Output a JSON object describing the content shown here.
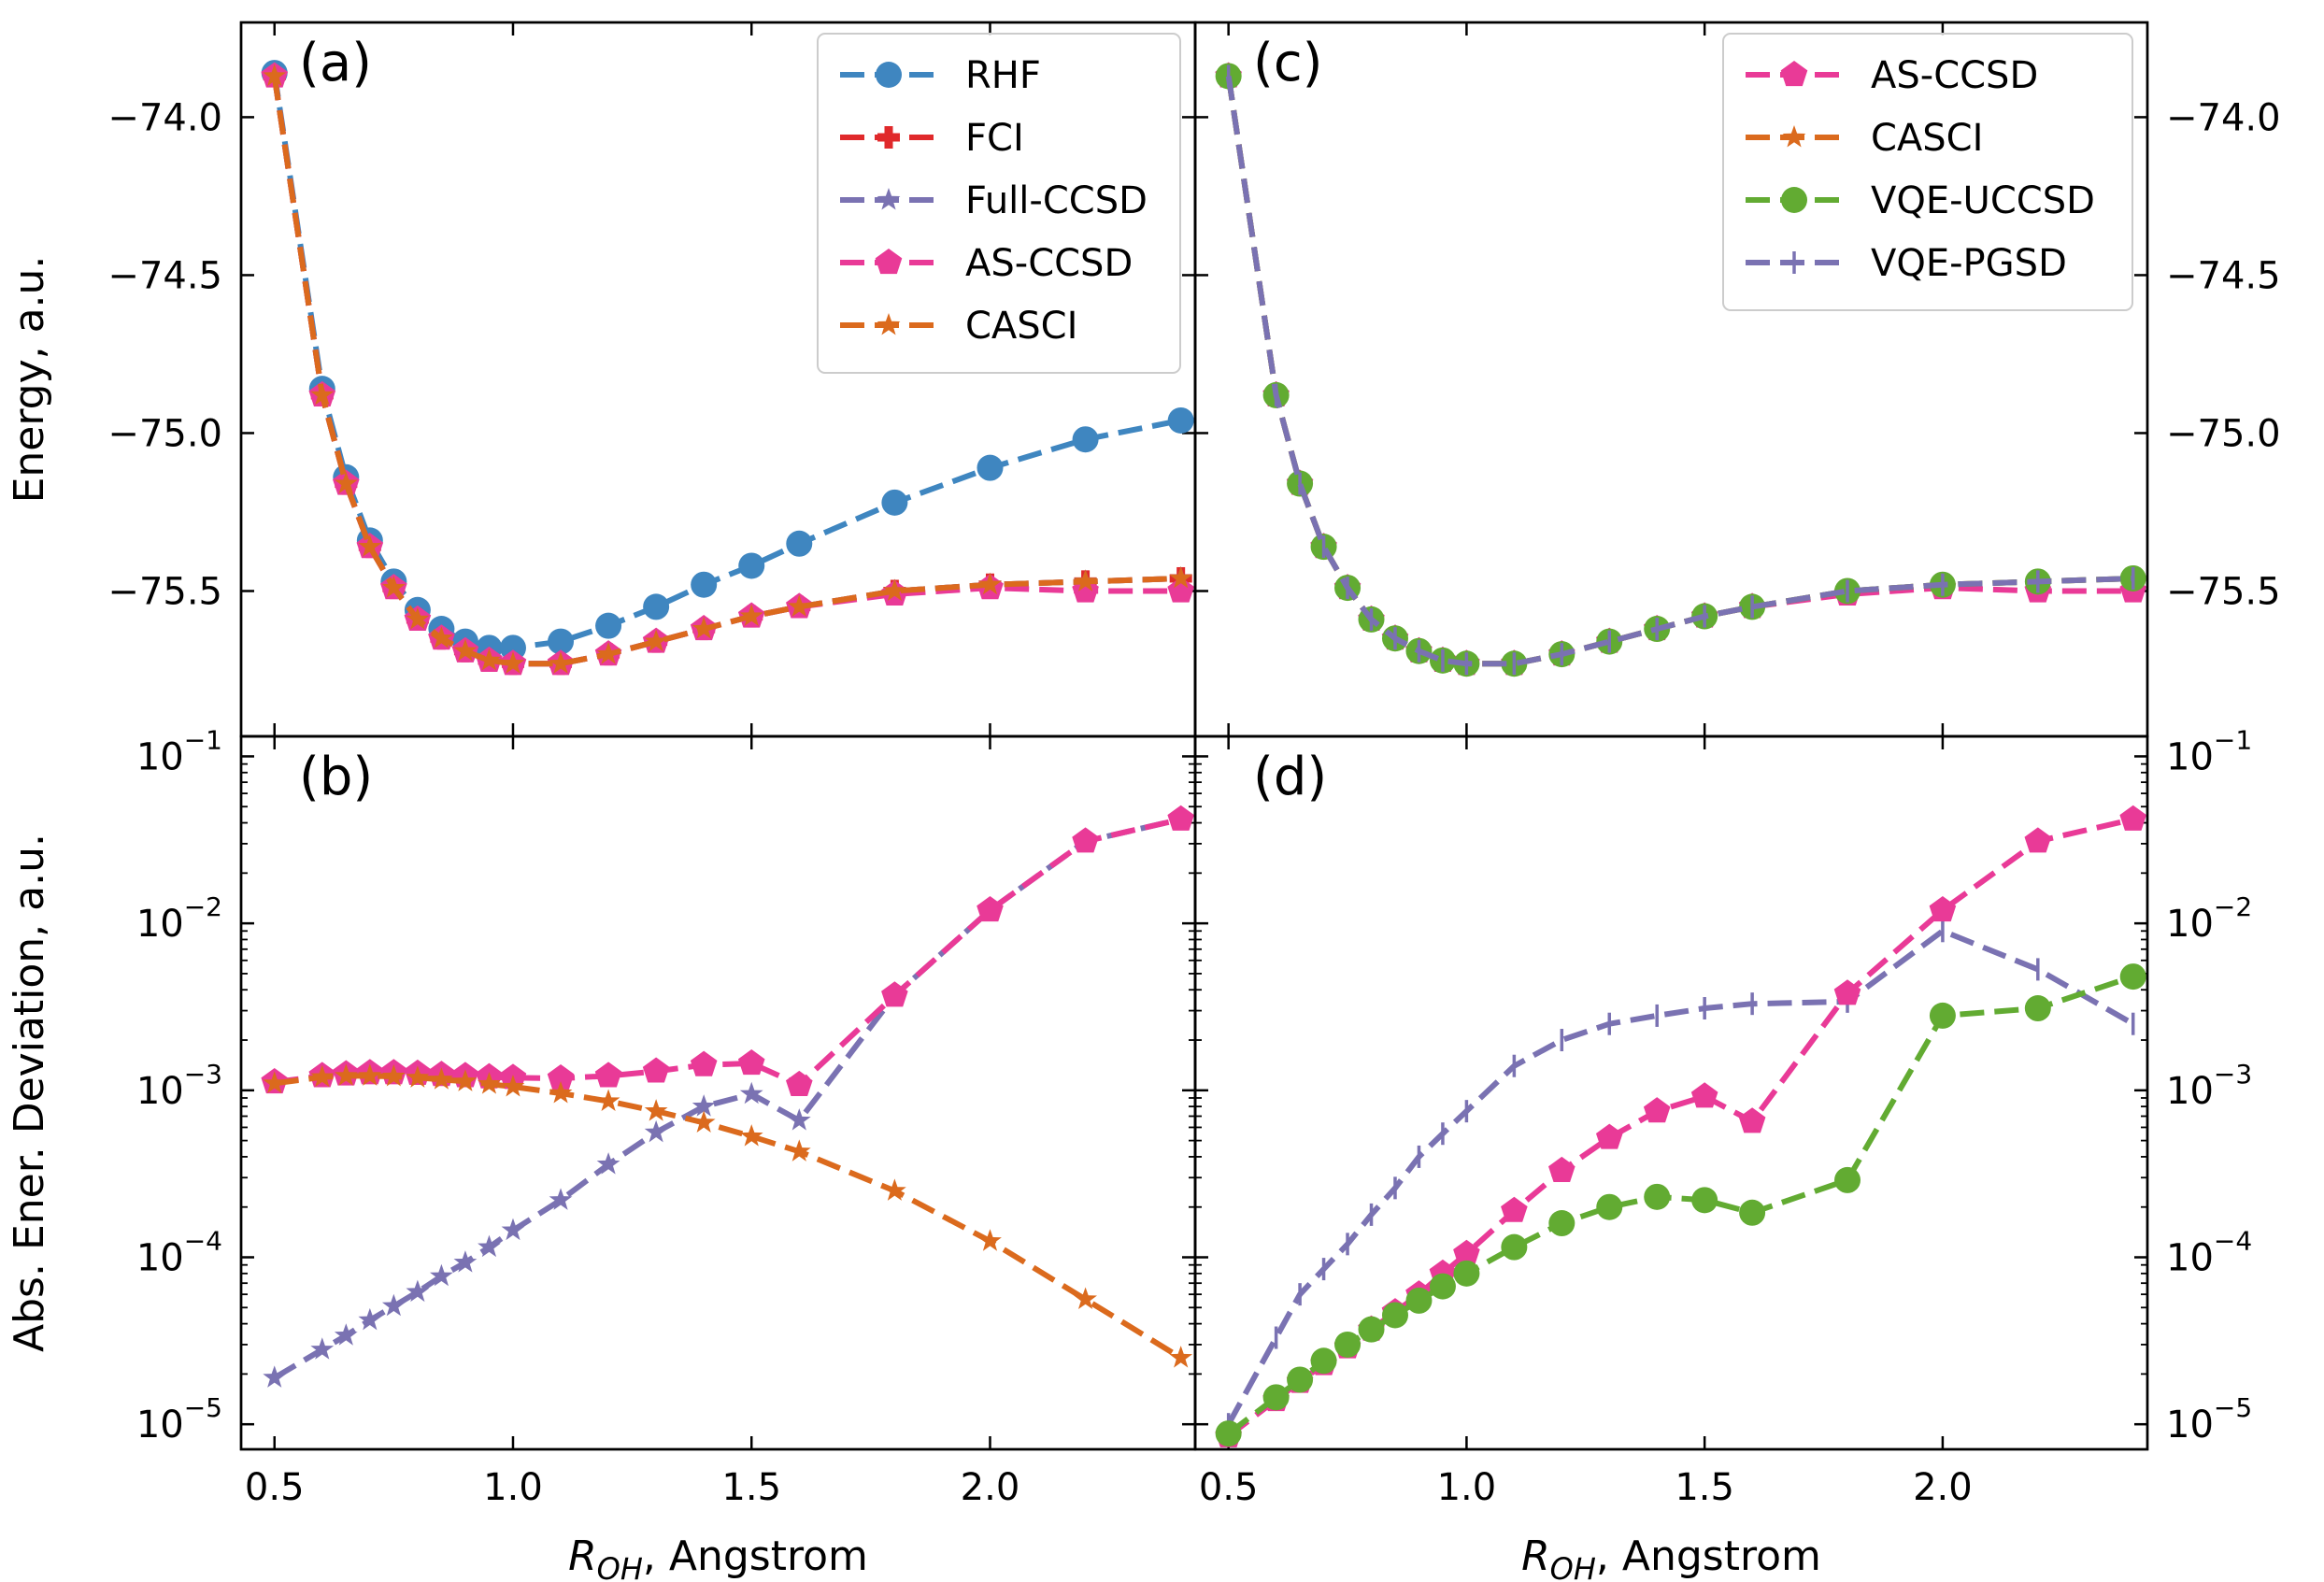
{
  "colors": {
    "RHF": "#3f86c0",
    "FCI": "#e0292b",
    "Full-CCSD": "#7a72b2",
    "AS-CCSD": "#e93a97",
    "CASCI": "#db6a1d",
    "VQE-UCCSD": "#62ab32",
    "VQE-PGSD": "#7a72b2"
  },
  "chart_data": [
    {
      "panel": "a",
      "type": "line",
      "label": "(a)",
      "ylabel": "Energy, a.u.",
      "xlim": [
        0.43,
        2.43
      ],
      "ylim": [
        -75.96,
        -73.7
      ],
      "yscale": "linear",
      "yticks": [
        -74.0,
        -74.5,
        -75.0,
        -75.5
      ],
      "ytick_labels": [
        "−74.0",
        "−74.5",
        "−75.0",
        "−75.5"
      ],
      "legend_position": "top-right",
      "series": [
        {
          "name": "RHF",
          "marker": "circle",
          "x": [
            0.5,
            0.6,
            0.65,
            0.7,
            0.75,
            0.8,
            0.85,
            0.9,
            0.95,
            1.0,
            1.1,
            1.2,
            1.3,
            1.4,
            1.5,
            1.6,
            1.8,
            2.0,
            2.2,
            2.4
          ],
          "values": [
            -73.86,
            -74.86,
            -75.14,
            -75.34,
            -75.47,
            -75.56,
            -75.62,
            -75.66,
            -75.68,
            -75.68,
            -75.66,
            -75.61,
            -75.55,
            -75.48,
            -75.42,
            -75.35,
            -75.22,
            -75.11,
            -75.02,
            -74.96
          ]
        },
        {
          "name": "FCI",
          "marker": "plus",
          "x": [
            0.5,
            0.6,
            0.65,
            0.7,
            0.75,
            0.8,
            0.85,
            0.9,
            0.95,
            1.0,
            1.1,
            1.2,
            1.3,
            1.4,
            1.5,
            1.6,
            1.8,
            2.0,
            2.2,
            2.4
          ],
          "values": [
            -73.87,
            -74.88,
            -75.16,
            -75.36,
            -75.49,
            -75.59,
            -75.65,
            -75.69,
            -75.72,
            -75.73,
            -75.73,
            -75.7,
            -75.66,
            -75.62,
            -75.58,
            -75.55,
            -75.5,
            -75.48,
            -75.47,
            -75.46
          ]
        },
        {
          "name": "Full-CCSD",
          "marker": "star",
          "x": [
            0.5,
            0.6,
            0.65,
            0.7,
            0.75,
            0.8,
            0.85,
            0.9,
            0.95,
            1.0,
            1.1,
            1.2,
            1.3,
            1.4,
            1.5,
            1.6,
            1.8,
            2.0,
            2.2,
            2.4
          ],
          "values": [
            -73.87,
            -74.88,
            -75.16,
            -75.36,
            -75.49,
            -75.59,
            -75.65,
            -75.69,
            -75.72,
            -75.73,
            -75.73,
            -75.7,
            -75.66,
            -75.62,
            -75.58,
            -75.55,
            -75.5,
            -75.48,
            -75.47,
            -75.46
          ]
        },
        {
          "name": "AS-CCSD",
          "marker": "pentagon",
          "x": [
            0.5,
            0.6,
            0.65,
            0.7,
            0.75,
            0.8,
            0.85,
            0.9,
            0.95,
            1.0,
            1.1,
            1.2,
            1.3,
            1.4,
            1.5,
            1.6,
            1.8,
            2.0,
            2.2,
            2.4
          ],
          "values": [
            -73.87,
            -74.88,
            -75.16,
            -75.36,
            -75.49,
            -75.59,
            -75.65,
            -75.69,
            -75.72,
            -75.73,
            -75.73,
            -75.7,
            -75.66,
            -75.62,
            -75.58,
            -75.55,
            -75.51,
            -75.49,
            -75.5,
            -75.5
          ]
        },
        {
          "name": "CASCI",
          "marker": "star",
          "x": [
            0.5,
            0.6,
            0.65,
            0.7,
            0.75,
            0.8,
            0.85,
            0.9,
            0.95,
            1.0,
            1.1,
            1.2,
            1.3,
            1.4,
            1.5,
            1.6,
            1.8,
            2.0,
            2.2,
            2.4
          ],
          "values": [
            -73.87,
            -74.88,
            -75.16,
            -75.36,
            -75.49,
            -75.59,
            -75.65,
            -75.69,
            -75.72,
            -75.73,
            -75.73,
            -75.7,
            -75.66,
            -75.62,
            -75.58,
            -75.55,
            -75.5,
            -75.48,
            -75.47,
            -75.46
          ]
        }
      ]
    },
    {
      "panel": "c",
      "type": "line",
      "label": "(c)",
      "ylabel": "",
      "xlim": [
        0.43,
        2.43
      ],
      "ylim": [
        -75.96,
        -73.7
      ],
      "yscale": "linear",
      "yticks": [
        -74.0,
        -74.5,
        -75.0,
        -75.5
      ],
      "ytick_labels": [
        "−74.0",
        "−74.5",
        "−75.0",
        "−75.5"
      ],
      "legend_position": "top-right",
      "series": [
        {
          "name": "AS-CCSD",
          "marker": "pentagon",
          "x": [
            0.5,
            0.6,
            0.65,
            0.7,
            0.75,
            0.8,
            0.85,
            0.9,
            0.95,
            1.0,
            1.1,
            1.2,
            1.3,
            1.4,
            1.5,
            1.6,
            1.8,
            2.0,
            2.2,
            2.4
          ],
          "values": [
            -73.87,
            -74.88,
            -75.16,
            -75.36,
            -75.49,
            -75.59,
            -75.65,
            -75.69,
            -75.72,
            -75.73,
            -75.73,
            -75.7,
            -75.66,
            -75.62,
            -75.58,
            -75.55,
            -75.51,
            -75.49,
            -75.5,
            -75.5
          ]
        },
        {
          "name": "CASCI",
          "marker": "star",
          "x": [
            0.5,
            0.6,
            0.65,
            0.7,
            0.75,
            0.8,
            0.85,
            0.9,
            0.95,
            1.0,
            1.1,
            1.2,
            1.3,
            1.4,
            1.5,
            1.6,
            1.8,
            2.0,
            2.2,
            2.4
          ],
          "values": [
            -73.87,
            -74.88,
            -75.16,
            -75.36,
            -75.49,
            -75.59,
            -75.65,
            -75.69,
            -75.72,
            -75.73,
            -75.73,
            -75.7,
            -75.66,
            -75.62,
            -75.58,
            -75.55,
            -75.5,
            -75.48,
            -75.47,
            -75.46
          ]
        },
        {
          "name": "VQE-UCCSD",
          "marker": "circle",
          "x": [
            0.5,
            0.6,
            0.65,
            0.7,
            0.75,
            0.8,
            0.85,
            0.9,
            0.95,
            1.0,
            1.1,
            1.2,
            1.3,
            1.4,
            1.5,
            1.6,
            1.8,
            2.0,
            2.2,
            2.4
          ],
          "values": [
            -73.87,
            -74.88,
            -75.16,
            -75.36,
            -75.49,
            -75.59,
            -75.65,
            -75.69,
            -75.72,
            -75.73,
            -75.73,
            -75.7,
            -75.66,
            -75.62,
            -75.58,
            -75.55,
            -75.5,
            -75.48,
            -75.47,
            -75.46
          ]
        },
        {
          "name": "VQE-PGSD",
          "marker": "tick",
          "x": [
            0.5,
            0.6,
            0.65,
            0.7,
            0.75,
            0.8,
            0.85,
            0.9,
            0.95,
            1.0,
            1.1,
            1.2,
            1.3,
            1.4,
            1.5,
            1.6,
            1.8,
            2.0,
            2.2,
            2.4
          ],
          "values": [
            -73.87,
            -74.88,
            -75.16,
            -75.36,
            -75.49,
            -75.59,
            -75.65,
            -75.69,
            -75.72,
            -75.73,
            -75.73,
            -75.7,
            -75.66,
            -75.62,
            -75.58,
            -75.55,
            -75.5,
            -75.48,
            -75.47,
            -75.46
          ]
        }
      ]
    },
    {
      "panel": "b",
      "type": "line",
      "label": "(b)",
      "ylabel": "Abs. Ener. Deviation, a.u.",
      "xlabel_prefix": "R",
      "xlabel_sub": "OH",
      "xlabel_suffix": ", Angstrom",
      "xlim": [
        0.43,
        2.43
      ],
      "ylim_log10": [
        -5.15,
        -0.88
      ],
      "yscale": "log",
      "ytick_exponents": [
        -5,
        -4,
        -3,
        -2,
        -1
      ],
      "ytick_base": "10",
      "ytick_exponent_labels": [
        "−5",
        "−4",
        "−3",
        "−2",
        "−1"
      ],
      "xticks": [
        0.5,
        1.0,
        1.5,
        2.0
      ],
      "xtick_labels": [
        "0.5",
        "1.0",
        "1.5",
        "2.0"
      ],
      "series": [
        {
          "name": "Full-CCSD",
          "marker": "star",
          "x": [
            0.5,
            0.6,
            0.65,
            0.7,
            0.75,
            0.8,
            0.85,
            0.9,
            0.95,
            1.0,
            1.1,
            1.2,
            1.3,
            1.4,
            1.5,
            1.6,
            1.8,
            2.0,
            2.2,
            2.4
          ],
          "values": [
            1.9e-05,
            2.8e-05,
            3.4e-05,
            4.2e-05,
            5.1e-05,
            6.2e-05,
            7.7e-05,
            9.3e-05,
            0.000115,
            0.000145,
            0.00022,
            0.00036,
            0.00056,
            0.0008,
            0.00095,
            0.00066,
            0.0037,
            0.012,
            0.031,
            0.042
          ]
        },
        {
          "name": "AS-CCSD",
          "marker": "pentagon",
          "x": [
            0.5,
            0.6,
            0.65,
            0.7,
            0.75,
            0.8,
            0.85,
            0.9,
            0.95,
            1.0,
            1.1,
            1.2,
            1.3,
            1.4,
            1.5,
            1.6,
            1.8,
            2.0,
            2.2,
            2.4
          ],
          "values": [
            0.00112,
            0.00122,
            0.00125,
            0.00127,
            0.00127,
            0.00126,
            0.00124,
            0.00122,
            0.0012,
            0.00119,
            0.00118,
            0.00122,
            0.0013,
            0.00142,
            0.00145,
            0.00108,
            0.0037,
            0.012,
            0.031,
            0.042
          ]
        },
        {
          "name": "CASCI",
          "marker": "star",
          "x": [
            0.5,
            0.6,
            0.65,
            0.7,
            0.75,
            0.8,
            0.85,
            0.9,
            0.95,
            1.0,
            1.1,
            1.2,
            1.3,
            1.4,
            1.5,
            1.6,
            1.8,
            2.0,
            2.2,
            2.4
          ],
          "values": [
            0.0011,
            0.0012,
            0.00122,
            0.00122,
            0.00121,
            0.00119,
            0.00116,
            0.00113,
            0.00109,
            0.00105,
            0.00096,
            0.00086,
            0.00075,
            0.00064,
            0.00053,
            0.00043,
            0.00025,
            0.000125,
            5.6e-05,
            2.5e-05
          ]
        }
      ]
    },
    {
      "panel": "d",
      "type": "line",
      "label": "(d)",
      "ylabel": "",
      "xlabel_prefix": "R",
      "xlabel_sub": "OH",
      "xlabel_suffix": ", Angstrom",
      "xlim": [
        0.43,
        2.43
      ],
      "ylim_log10": [
        -5.15,
        -0.88
      ],
      "yscale": "log",
      "ytick_exponents": [
        -5,
        -4,
        -3,
        -2,
        -1
      ],
      "ytick_base": "10",
      "ytick_exponent_labels": [
        "−5",
        "−4",
        "−3",
        "−2",
        "−1"
      ],
      "xticks": [
        0.5,
        1.0,
        1.5,
        2.0
      ],
      "xtick_labels": [
        "0.5",
        "1.0",
        "1.5",
        "2.0"
      ],
      "series": [
        {
          "name": "VQE-PGSD",
          "marker": "tick",
          "x": [
            0.5,
            0.6,
            0.65,
            0.7,
            0.75,
            0.8,
            0.85,
            0.9,
            0.95,
            1.0,
            1.1,
            1.2,
            1.3,
            1.4,
            1.5,
            1.6,
            1.8,
            2.0,
            2.2,
            2.4
          ],
          "values": [
            1e-05,
            3.3e-05,
            6e-05,
            8.5e-05,
            0.00012,
            0.00018,
            0.00026,
            0.0004,
            0.00055,
            0.00075,
            0.0014,
            0.002,
            0.0025,
            0.0028,
            0.0031,
            0.0033,
            0.0034,
            0.009,
            0.0053,
            0.0025
          ]
        },
        {
          "name": "AS-CCSD",
          "marker": "pentagon",
          "x": [
            0.5,
            0.6,
            0.65,
            0.7,
            0.75,
            0.8,
            0.85,
            0.9,
            0.95,
            1.0,
            1.1,
            1.2,
            1.3,
            1.4,
            1.5,
            1.6,
            1.8,
            2.0,
            2.2,
            2.4
          ],
          "values": [
            8.5e-06,
            1.4e-05,
            1.8e-05,
            2.3e-05,
            2.9e-05,
            3.7e-05,
            4.7e-05,
            6e-05,
            8e-05,
            0.000105,
            0.00019,
            0.00033,
            0.00052,
            0.00075,
            0.00092,
            0.00065,
            0.0038,
            0.012,
            0.031,
            0.042
          ]
        },
        {
          "name": "VQE-UCCSD",
          "marker": "circle",
          "x": [
            0.5,
            0.6,
            0.65,
            0.7,
            0.75,
            0.8,
            0.85,
            0.9,
            0.95,
            1.0,
            1.1,
            1.2,
            1.3,
            1.4,
            1.5,
            1.6,
            1.8,
            2.0,
            2.2,
            2.4
          ],
          "values": [
            8.8e-06,
            1.45e-05,
            1.85e-05,
            2.4e-05,
            3e-05,
            3.7e-05,
            4.5e-05,
            5.5e-05,
            6.7e-05,
            8e-05,
            0.000115,
            0.00016,
            0.0002,
            0.00023,
            0.00022,
            0.000185,
            0.00029,
            0.0028,
            0.0031,
            0.0048
          ]
        }
      ]
    }
  ]
}
